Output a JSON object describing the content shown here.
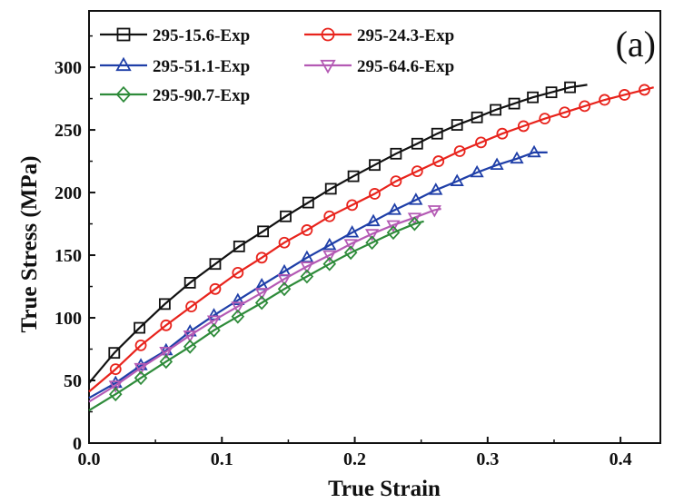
{
  "chart_data": {
    "type": "line",
    "panel_label": "(a)",
    "xlabel": "True Strain",
    "ylabel": "True Stress (MPa)",
    "xlim": [
      0.0,
      0.43
    ],
    "ylim": [
      0,
      345
    ],
    "xticks": [
      0.0,
      0.1,
      0.2,
      0.3,
      0.4
    ],
    "xtick_labels": [
      "0.0",
      "0.1",
      "0.2",
      "0.3",
      "0.4"
    ],
    "yticks": [
      0,
      50,
      100,
      150,
      200,
      250,
      300
    ],
    "ytick_labels": [
      "0",
      "50",
      "100",
      "150",
      "200",
      "250",
      "300"
    ],
    "grid": false,
    "legend_position": "top-left",
    "series": [
      {
        "name": "295-15.6-Exp",
        "color": "#111111",
        "marker": "square",
        "x": [
          0.0,
          0.019,
          0.038,
          0.057,
          0.076,
          0.095,
          0.113,
          0.131,
          0.148,
          0.165,
          0.182,
          0.199,
          0.215,
          0.231,
          0.247,
          0.262,
          0.277,
          0.292,
          0.306,
          0.32,
          0.334,
          0.348,
          0.362,
          0.375
        ],
        "y": [
          48,
          72,
          92,
          111,
          128,
          143,
          157,
          169,
          181,
          192,
          203,
          213,
          222,
          231,
          239,
          247,
          254,
          260,
          266,
          271,
          276,
          280,
          284,
          286
        ]
      },
      {
        "name": "295-24.3-Exp",
        "color": "#e8231c",
        "marker": "circle",
        "x": [
          0.0,
          0.02,
          0.039,
          0.058,
          0.077,
          0.095,
          0.112,
          0.13,
          0.147,
          0.164,
          0.181,
          0.198,
          0.215,
          0.231,
          0.247,
          0.263,
          0.279,
          0.295,
          0.311,
          0.327,
          0.343,
          0.358,
          0.373,
          0.388,
          0.403,
          0.418,
          0.425
        ],
        "y": [
          41,
          59,
          78,
          94,
          109,
          123,
          136,
          148,
          160,
          170,
          181,
          190,
          199,
          209,
          217,
          225,
          233,
          240,
          247,
          253,
          259,
          264,
          269,
          274,
          278,
          282,
          284
        ]
      },
      {
        "name": "295-51.1-Exp",
        "color": "#1f3fa8",
        "marker": "triangle-up",
        "x": [
          0.0,
          0.02,
          0.039,
          0.058,
          0.076,
          0.094,
          0.112,
          0.13,
          0.147,
          0.164,
          0.181,
          0.198,
          0.214,
          0.23,
          0.246,
          0.261,
          0.277,
          0.292,
          0.307,
          0.322,
          0.335,
          0.345
        ],
        "y": [
          36,
          48,
          62,
          74,
          89,
          102,
          114,
          126,
          137,
          148,
          158,
          168,
          177,
          186,
          194,
          202,
          209,
          216,
          222,
          227,
          232,
          232
        ]
      },
      {
        "name": "295-64.6-Exp",
        "color": "#b45ab4",
        "marker": "triangle-down",
        "x": [
          0.0,
          0.02,
          0.039,
          0.058,
          0.076,
          0.094,
          0.112,
          0.13,
          0.147,
          0.164,
          0.181,
          0.197,
          0.213,
          0.229,
          0.245,
          0.26,
          0.265
        ],
        "y": [
          33,
          46,
          60,
          73,
          86,
          98,
          109,
          120,
          131,
          141,
          150,
          159,
          167,
          174,
          180,
          186,
          187
        ]
      },
      {
        "name": "295-90.7-Exp",
        "color": "#2e8b3a",
        "marker": "diamond",
        "x": [
          0.0,
          0.02,
          0.039,
          0.058,
          0.076,
          0.094,
          0.112,
          0.13,
          0.147,
          0.164,
          0.181,
          0.197,
          0.213,
          0.229,
          0.245,
          0.252
        ],
        "y": [
          26,
          39,
          52,
          65,
          77,
          90,
          101,
          112,
          123,
          133,
          143,
          152,
          160,
          168,
          175,
          177
        ]
      }
    ]
  }
}
